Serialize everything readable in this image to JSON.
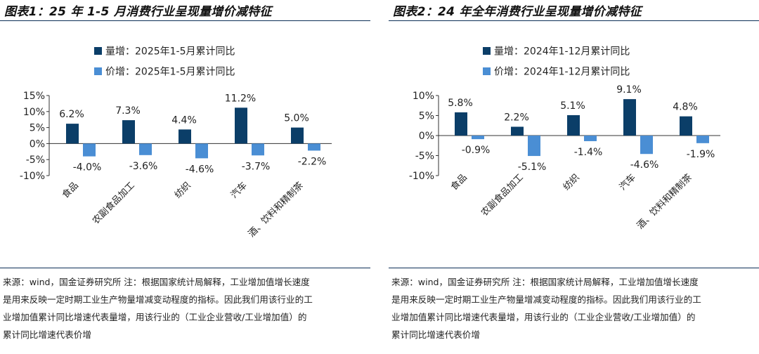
{
  "colors": {
    "qty": "#0b3e68",
    "price": "#4a8ed4",
    "rule": "#0c2f57"
  },
  "panels": [
    {
      "title": "图表1：25 年 1-5 月消费行业呈现量增价减特征",
      "chart_data": {
        "type": "bar",
        "categories": [
          "食品",
          "农副食品加工",
          "纺织",
          "汽车",
          "酒、饮料和精制茶"
        ],
        "series": [
          {
            "name": "量增：2025年1-5月累计同比",
            "values": [
              6.2,
              7.3,
              4.4,
              11.2,
              5.0
            ],
            "labels": [
              "6.2%",
              "7.3%",
              "4.4%",
              "11.2%",
              "5.0%"
            ]
          },
          {
            "name": "价增：2025年1-5月累计同比",
            "values": [
              -4.0,
              -3.6,
              -4.6,
              -3.7,
              -2.2
            ],
            "labels": [
              "-4.0%",
              "-3.6%",
              "-4.6%",
              "-3.7%",
              "-2.2%"
            ]
          }
        ],
        "ylim": [
          -10,
          15
        ],
        "yticks": [
          15,
          10,
          5,
          0,
          -5,
          -10
        ],
        "ytick_labels": [
          "15%",
          "10%",
          "5%",
          "0%",
          "-5%",
          "-10%"
        ],
        "legend_position": "top"
      },
      "source": [
        "来源：wind，国金证券研究所 注：根据国家统计局解释，工业增加值增长速度",
        "是用来反映一定时期工业生产物量增减变动程度的指标。因此我们用该行业的工",
        "业增加值累计同比增速代表量增，用该行业的（工业企业营收/工业增加值）的",
        "累计同比增速代表价增"
      ]
    },
    {
      "title": "图表2：24 年全年消费行业呈现量增价减特征",
      "chart_data": {
        "type": "bar",
        "categories": [
          "食品",
          "农副食品加工",
          "纺织",
          "汽车",
          "酒、饮料和精制茶"
        ],
        "series": [
          {
            "name": "量增：2024年1-12月累计同比",
            "values": [
              5.8,
              2.2,
              5.1,
              9.1,
              4.8
            ],
            "labels": [
              "5.8%",
              "2.2%",
              "5.1%",
              "9.1%",
              "4.8%"
            ]
          },
          {
            "name": "价增：2024年1-12月累计同比",
            "values": [
              -0.9,
              -5.1,
              -1.4,
              -4.6,
              -1.9
            ],
            "labels": [
              "-0.9%",
              "-5.1%",
              "-1.4%",
              "-4.6%",
              "-1.9%"
            ]
          }
        ],
        "ylim": [
          -10,
          10
        ],
        "yticks": [
          10,
          5,
          0,
          -5,
          -10
        ],
        "ytick_labels": [
          "10%",
          "5%",
          "0%",
          "-5%",
          "-10%"
        ],
        "legend_position": "top"
      },
      "source": [
        "来源：wind，国金证券研究所 注：根据国家统计局解释，工业增加值增长速度",
        "是用来反映一定时期工业生产物量增减变动程度的指标。因此我们用该行业的工",
        "业增加值累计同比增速代表量增，用该行业的（工业企业营收/工业增加值）的",
        "累计同比增速代表价增"
      ]
    }
  ]
}
